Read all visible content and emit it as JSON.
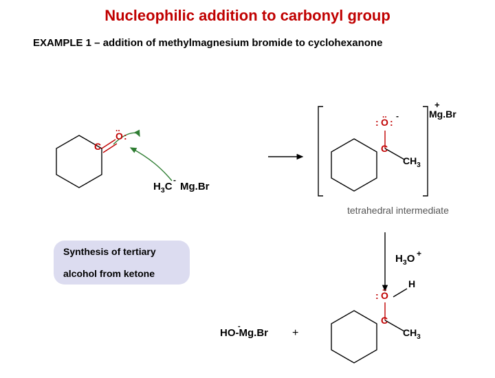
{
  "title": {
    "text": "Nucleophilic addition to carbonyl group",
    "color": "#c00000",
    "fontsize": 22
  },
  "subtitle": {
    "text": "EXAMPLE 1 – addition of methylmagnesium bromide to cyclohexanone",
    "color": "#000",
    "fontsize": 15
  },
  "callout": {
    "line1": "Synthesis of tertiary",
    "line2": "alcohol from ketone",
    "bg": "#dcdcf0",
    "color": "#000"
  },
  "intermediate_label": {
    "text": "tetrahedral intermediate",
    "color": "#666"
  },
  "labels": {
    "C1": "C",
    "O1": "O",
    "lp1a": "..",
    "lp1b": ":",
    "H3C": "H<sub>3</sub>C",
    "MgBr1": "Mg.Br",
    "minus1": "-",
    "C2": "C",
    "O2": "O",
    "lp2a": "..",
    "lp2b": ":",
    "lp2c": ":",
    "minus2": "-",
    "CH3_2": "CH<sub>3</sub>",
    "MgBr2": "Mg.Br",
    "plus2": "+",
    "H3O": "H<sub>3</sub>O",
    "plus3": "+",
    "HOMgBr": "HO-Mg.Br",
    "plus4": "+",
    "minus4": "-",
    "C3": "C",
    "O3": "O",
    "lp3a": "..",
    "lp3b": ":",
    "lp3c": ":",
    "H3": "H",
    "CH3_3": "CH<sub>3</sub>"
  },
  "colors": {
    "red": "#c00000",
    "green": "#2e7d32",
    "black": "#000",
    "arrow": "#000"
  },
  "ring": {
    "size": 40
  }
}
